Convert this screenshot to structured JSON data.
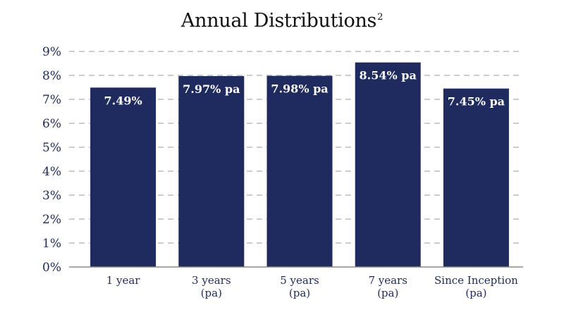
{
  "chart_data": {
    "type": "bar",
    "title": "Annual Distributions",
    "title_superscript": "2",
    "categories": [
      [
        "1 year"
      ],
      [
        "3 years",
        "(pa)"
      ],
      [
        "5 years",
        "(pa)"
      ],
      [
        "7 years",
        "(pa)"
      ],
      [
        "Since Inception",
        "(pa)"
      ]
    ],
    "values": [
      7.49,
      7.97,
      7.98,
      8.54,
      7.45
    ],
    "data_labels": [
      "7.49%",
      "7.97% pa",
      "7.98% pa",
      "8.54% pa",
      "7.45% pa"
    ],
    "yticks": [
      "0%",
      "1%",
      "2%",
      "3%",
      "4%",
      "5%",
      "6%",
      "7%",
      "8%",
      "9%"
    ],
    "ylim": [
      0,
      9
    ],
    "grid": "horizontal-dashed",
    "legend": "none",
    "bar_color": "#1f2a5f",
    "grid_color": "#9a9a9a",
    "axis_color": "#8a8a8a"
  }
}
